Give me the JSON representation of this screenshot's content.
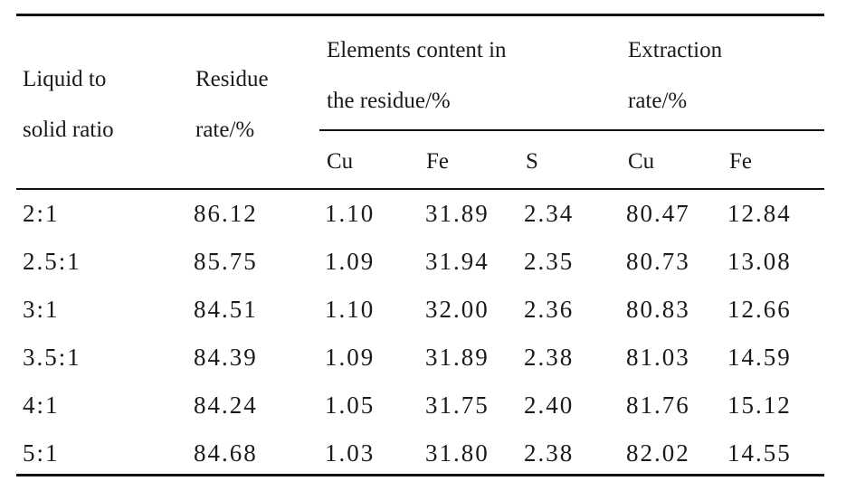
{
  "header": {
    "col1_line1": "Liquid to",
    "col1_line2": "solid ratio",
    "col2_line1": "Residue",
    "col2_line2": "rate/%",
    "group1_line1": "Elements content in",
    "group1_line2": "the residue/%",
    "group2_line1": "Extraction",
    "group2_line2": "rate/%",
    "sub": [
      "Cu",
      "Fe",
      "S",
      "Cu",
      "Fe"
    ]
  },
  "rows": [
    [
      "2:1",
      "86.12",
      "1.10",
      "31.89",
      "2.34",
      "80.47",
      "12.84"
    ],
    [
      "2.5:1",
      "85.75",
      "1.09",
      "31.94",
      "2.35",
      "80.73",
      "13.08"
    ],
    [
      "3:1",
      "84.51",
      "1.10",
      "32.00",
      "2.36",
      "80.83",
      "12.66"
    ],
    [
      "3.5:1",
      "84.39",
      "1.09",
      "31.89",
      "2.38",
      "81.03",
      "14.59"
    ],
    [
      "4:1",
      "84.24",
      "1.05",
      "31.75",
      "2.40",
      "81.76",
      "15.12"
    ],
    [
      "5:1",
      "84.68",
      "1.03",
      "31.80",
      "2.38",
      "82.02",
      "14.55"
    ]
  ]
}
